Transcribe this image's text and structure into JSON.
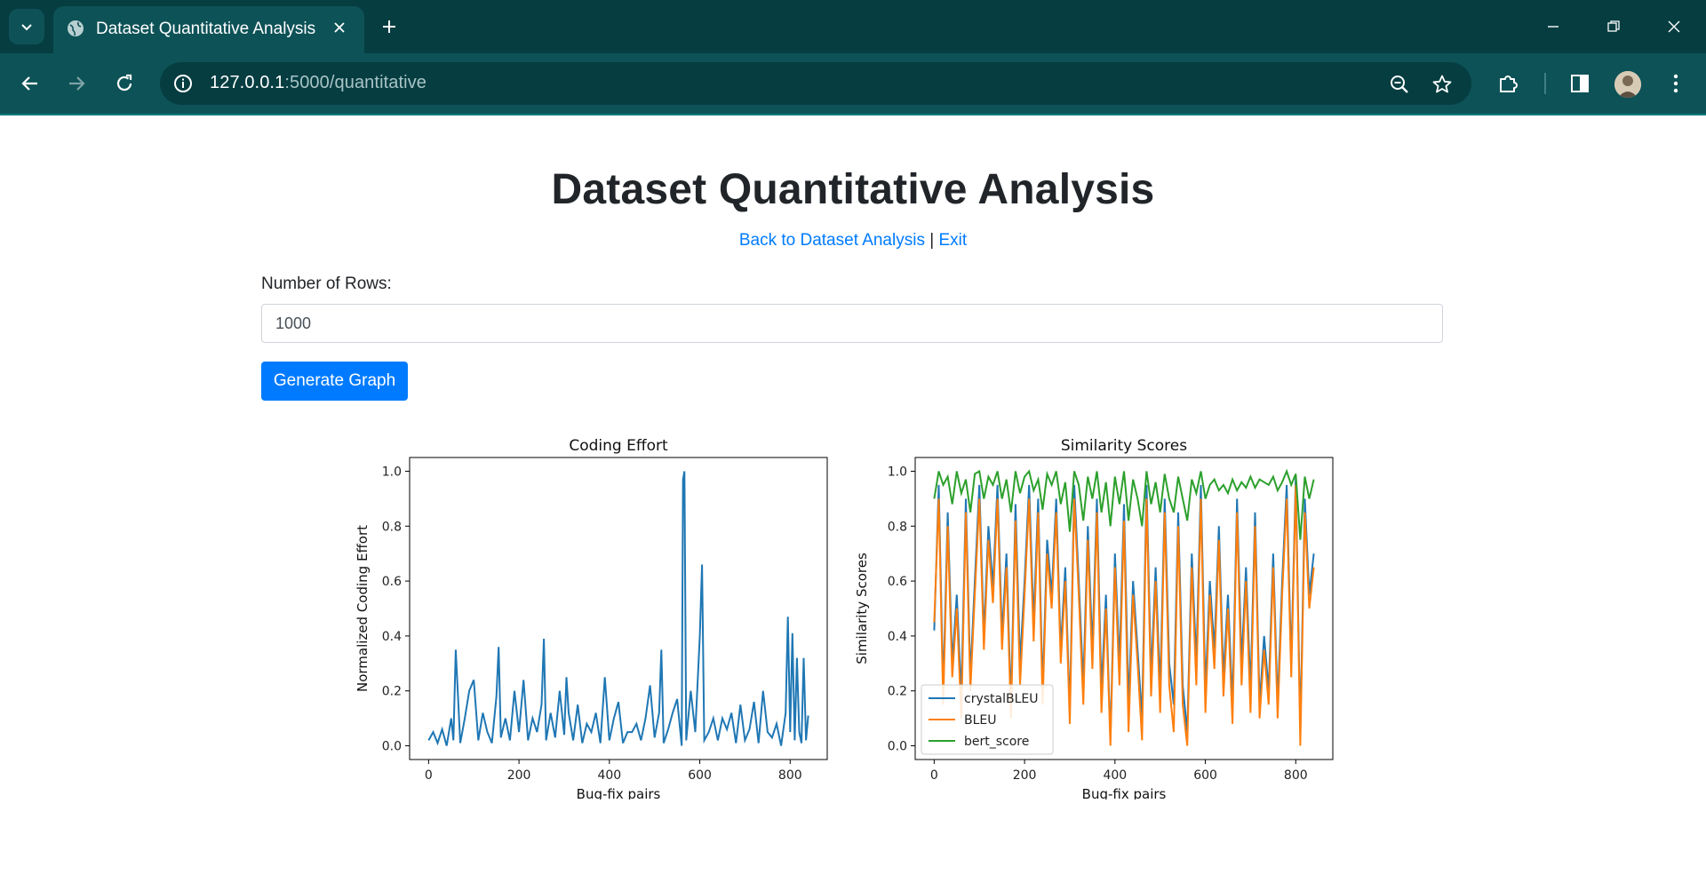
{
  "browser": {
    "tab_title": "Dataset Quantitative Analysis",
    "url_host": "127.0.0.1",
    "url_rest": ":5000/quantitative"
  },
  "page": {
    "title": "Dataset Quantitative Analysis",
    "back_link": "Back to Dataset Analysis",
    "separator": "|",
    "exit_link": "Exit",
    "rows_label": "Number of Rows:",
    "rows_value": "1000",
    "generate_button": "Generate Graph"
  },
  "colors": {
    "crystalBLEU": "#1f77b4",
    "BLEU": "#ff7f0e",
    "bert_score": "#2ca02c",
    "primary": "#007bff"
  },
  "chart_data": [
    {
      "type": "line",
      "title": "Coding Effort",
      "xlabel": "Bug-fix pairs",
      "ylabel": "Normalized Coding Effort",
      "xlim": [
        -42,
        882
      ],
      "ylim": [
        -0.05,
        1.05
      ],
      "xticks": [
        0,
        200,
        400,
        600,
        800
      ],
      "yticks": [
        0.0,
        0.2,
        0.4,
        0.6,
        0.8,
        1.0
      ],
      "series": [
        {
          "name": "coding effort",
          "x": [
            0,
            10,
            20,
            30,
            40,
            50,
            55,
            60,
            70,
            80,
            90,
            100,
            110,
            120,
            130,
            140,
            150,
            155,
            160,
            170,
            180,
            190,
            200,
            210,
            220,
            230,
            240,
            250,
            255,
            260,
            270,
            280,
            290,
            300,
            305,
            310,
            320,
            330,
            340,
            350,
            360,
            370,
            380,
            390,
            400,
            410,
            420,
            430,
            440,
            450,
            460,
            470,
            480,
            490,
            500,
            510,
            515,
            520,
            530,
            540,
            550,
            560,
            563,
            566,
            570,
            580,
            590,
            600,
            605,
            610,
            620,
            630,
            640,
            650,
            660,
            670,
            680,
            690,
            700,
            710,
            720,
            730,
            740,
            750,
            760,
            770,
            780,
            790,
            795,
            800,
            805,
            810,
            815,
            820,
            825,
            830,
            835,
            840
          ],
          "values": [
            0.02,
            0.05,
            0.01,
            0.06,
            0.0,
            0.1,
            0.02,
            0.35,
            0.01,
            0.1,
            0.2,
            0.24,
            0.02,
            0.12,
            0.05,
            0.01,
            0.18,
            0.36,
            0.03,
            0.1,
            0.02,
            0.2,
            0.05,
            0.24,
            0.02,
            0.1,
            0.05,
            0.15,
            0.39,
            0.02,
            0.12,
            0.03,
            0.2,
            0.04,
            0.25,
            0.12,
            0.02,
            0.15,
            0.01,
            0.08,
            0.05,
            0.12,
            0.01,
            0.25,
            0.02,
            0.1,
            0.16,
            0.01,
            0.05,
            0.05,
            0.08,
            0.02,
            0.1,
            0.22,
            0.03,
            0.12,
            0.35,
            0.01,
            0.06,
            0.12,
            0.17,
            0.0,
            0.97,
            1.0,
            0.02,
            0.2,
            0.05,
            0.4,
            0.66,
            0.02,
            0.05,
            0.1,
            0.02,
            0.1,
            0.06,
            0.12,
            0.01,
            0.15,
            0.02,
            0.06,
            0.16,
            0.01,
            0.2,
            0.05,
            0.03,
            0.08,
            0.0,
            0.12,
            0.47,
            0.05,
            0.41,
            0.02,
            0.32,
            0.05,
            0.01,
            0.32,
            0.02,
            0.11
          ]
        }
      ]
    },
    {
      "type": "line",
      "title": "Similarity Scores",
      "xlabel": "Bug-fix pairs",
      "ylabel": "Similarity Scores",
      "xlim": [
        -42,
        882
      ],
      "ylim": [
        -0.05,
        1.05
      ],
      "xticks": [
        0,
        200,
        400,
        600,
        800
      ],
      "yticks": [
        0.0,
        0.2,
        0.4,
        0.6,
        0.8,
        1.0
      ],
      "legend": "lower-left",
      "series": [
        {
          "name": "crystalBLEU",
          "x": [
            0,
            10,
            20,
            30,
            40,
            50,
            60,
            70,
            80,
            90,
            100,
            110,
            120,
            130,
            140,
            150,
            160,
            170,
            180,
            190,
            200,
            210,
            220,
            230,
            240,
            250,
            260,
            270,
            280,
            290,
            300,
            310,
            320,
            330,
            340,
            350,
            360,
            370,
            380,
            390,
            400,
            410,
            420,
            430,
            440,
            450,
            460,
            470,
            480,
            490,
            500,
            510,
            520,
            530,
            540,
            550,
            560,
            570,
            580,
            590,
            600,
            610,
            620,
            630,
            640,
            650,
            660,
            670,
            680,
            690,
            700,
            710,
            720,
            730,
            740,
            750,
            760,
            770,
            780,
            790,
            800,
            810,
            820,
            830,
            840
          ],
          "values": [
            0.42,
            0.95,
            0.2,
            0.85,
            0.3,
            0.55,
            0.18,
            0.9,
            0.25,
            0.6,
            0.95,
            0.4,
            0.8,
            0.58,
            0.95,
            0.4,
            0.7,
            0.15,
            0.88,
            0.3,
            0.6,
            0.95,
            0.45,
            0.9,
            0.2,
            0.75,
            0.55,
            0.9,
            0.35,
            0.65,
            0.12,
            0.95,
            0.6,
            0.22,
            0.8,
            0.35,
            0.9,
            0.2,
            0.55,
            0.02,
            0.7,
            0.3,
            0.88,
            0.15,
            0.6,
            0.35,
            0.1,
            0.95,
            0.25,
            0.65,
            0.2,
            0.9,
            0.3,
            0.15,
            0.85,
            0.22,
            0.05,
            0.7,
            0.3,
            0.95,
            0.2,
            0.6,
            0.35,
            0.8,
            0.25,
            0.55,
            0.15,
            0.9,
            0.3,
            0.65,
            0.2,
            0.85,
            0.15,
            0.4,
            0.2,
            0.7,
            0.15,
            0.6,
            0.95,
            0.3,
            0.98,
            0.05,
            0.9,
            0.55,
            0.7
          ]
        },
        {
          "name": "BLEU",
          "x": [
            0,
            10,
            20,
            30,
            40,
            50,
            60,
            70,
            80,
            90,
            100,
            110,
            120,
            130,
            140,
            150,
            160,
            170,
            180,
            190,
            200,
            210,
            220,
            230,
            240,
            250,
            260,
            270,
            280,
            290,
            300,
            310,
            320,
            330,
            340,
            350,
            360,
            370,
            380,
            390,
            400,
            410,
            420,
            430,
            440,
            450,
            460,
            470,
            480,
            490,
            500,
            510,
            520,
            530,
            540,
            550,
            560,
            570,
            580,
            590,
            600,
            610,
            620,
            630,
            640,
            650,
            660,
            670,
            680,
            690,
            700,
            710,
            720,
            730,
            740,
            750,
            760,
            770,
            780,
            790,
            800,
            810,
            820,
            830,
            840
          ],
          "values": [
            0.45,
            0.9,
            0.15,
            0.8,
            0.25,
            0.5,
            0.1,
            0.85,
            0.2,
            0.55,
            0.9,
            0.35,
            0.75,
            0.52,
            0.9,
            0.35,
            0.65,
            0.1,
            0.82,
            0.22,
            0.55,
            0.9,
            0.38,
            0.85,
            0.15,
            0.7,
            0.5,
            0.85,
            0.3,
            0.6,
            0.08,
            0.9,
            0.55,
            0.15,
            0.75,
            0.28,
            0.85,
            0.12,
            0.5,
            0.0,
            0.65,
            0.22,
            0.82,
            0.05,
            0.55,
            0.3,
            0.02,
            0.9,
            0.18,
            0.6,
            0.12,
            0.85,
            0.22,
            0.05,
            0.8,
            0.15,
            0.0,
            0.65,
            0.22,
            0.9,
            0.12,
            0.55,
            0.28,
            0.75,
            0.18,
            0.5,
            0.08,
            0.85,
            0.22,
            0.6,
            0.12,
            0.8,
            0.1,
            0.35,
            0.15,
            0.65,
            0.1,
            0.55,
            0.9,
            0.25,
            0.95,
            0.0,
            0.85,
            0.5,
            0.65
          ]
        },
        {
          "name": "bert_score",
          "x": [
            0,
            10,
            20,
            30,
            40,
            50,
            60,
            70,
            80,
            90,
            100,
            110,
            120,
            130,
            140,
            150,
            160,
            170,
            180,
            190,
            200,
            210,
            220,
            230,
            240,
            250,
            260,
            270,
            280,
            290,
            300,
            310,
            320,
            330,
            340,
            350,
            360,
            370,
            380,
            390,
            400,
            410,
            420,
            430,
            440,
            450,
            460,
            470,
            480,
            490,
            500,
            510,
            520,
            530,
            540,
            550,
            560,
            570,
            580,
            590,
            600,
            610,
            620,
            630,
            640,
            650,
            660,
            670,
            680,
            690,
            700,
            710,
            720,
            730,
            740,
            750,
            760,
            770,
            780,
            790,
            800,
            810,
            820,
            830,
            840
          ],
          "values": [
            0.9,
            1.0,
            0.95,
            0.98,
            0.88,
            1.0,
            0.92,
            0.97,
            0.85,
            0.99,
            1.0,
            0.9,
            0.98,
            0.95,
            1.0,
            0.9,
            0.97,
            0.85,
            1.0,
            0.92,
            0.98,
            1.0,
            0.93,
            0.97,
            0.86,
            0.99,
            0.95,
            1.0,
            0.88,
            0.96,
            0.78,
            1.0,
            0.95,
            0.82,
            0.98,
            0.9,
            1.0,
            0.85,
            0.96,
            0.8,
            0.98,
            0.88,
            1.0,
            0.82,
            0.97,
            0.9,
            0.8,
            1.0,
            0.88,
            0.96,
            0.85,
            0.99,
            0.9,
            0.85,
            0.98,
            0.9,
            0.82,
            0.97,
            0.92,
            1.0,
            0.9,
            0.95,
            0.97,
            0.93,
            0.95,
            0.92,
            0.97,
            0.93,
            0.96,
            0.94,
            0.98,
            0.94,
            0.97,
            0.96,
            0.95,
            0.98,
            0.93,
            0.96,
            1.0,
            0.95,
            0.99,
            0.75,
            0.98,
            0.9,
            0.97
          ]
        }
      ]
    }
  ]
}
